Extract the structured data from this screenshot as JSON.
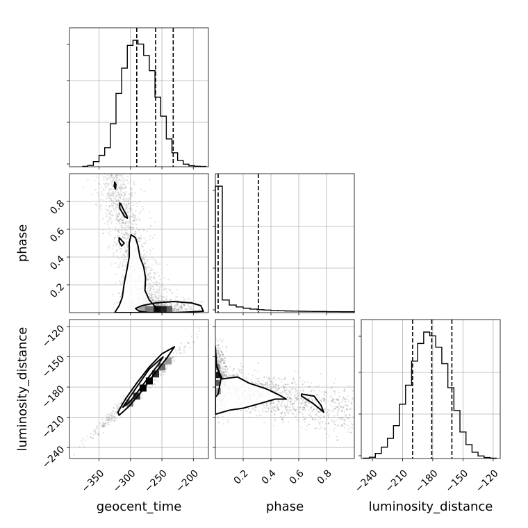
{
  "chart_data": {
    "type": "corner",
    "parameters": [
      "geocent_time",
      "phase",
      "luminosity_distance"
    ],
    "quantile_lines": [
      0.16,
      0.5,
      0.84
    ],
    "grid": true,
    "ranges": {
      "geocent_time": [
        -397,
        -176
      ],
      "phase": [
        0.0,
        1.0
      ],
      "luminosity_distance": [
        -251,
        -113
      ]
    },
    "ticks": {
      "geocent_time": [
        "−350",
        "−300",
        "−250",
        "−200"
      ],
      "geocent_time_values": [
        -350,
        -300,
        -250,
        -200
      ],
      "phase": [
        "0.2",
        "0.4",
        "0.6",
        "0.8"
      ],
      "phase_values": [
        0.2,
        0.4,
        0.6,
        0.8
      ],
      "luminosity_distance": [
        "−240",
        "−210",
        "−180",
        "−150",
        "−120"
      ],
      "luminosity_distance_values": [
        -240,
        -210,
        -180,
        -150,
        -120
      ]
    },
    "marginals": {
      "geocent_time": {
        "quantiles": [
          -290,
          -260,
          -232
        ],
        "bin_edges": [
          -376,
          -368,
          -359,
          -350,
          -341,
          -332,
          -323,
          -314,
          -305,
          -296,
          -288,
          -279,
          -270,
          -261,
          -252,
          -243,
          -234,
          -225,
          -216,
          -207,
          -198,
          -189,
          -180
        ],
        "counts": [
          0.3,
          1.0,
          4.0,
          9.0,
          15.0,
          34.0,
          58.0,
          78.0,
          96.0,
          100.0,
          97.0,
          88.0,
          76.0,
          55.0,
          40.0,
          22.0,
          11.0,
          5.0,
          2.0,
          0.8,
          0.4,
          0.2
        ]
      },
      "phase": {
        "quantiles": [
          0.02,
          0.31
        ],
        "bin_edges": [
          0.0,
          0.05,
          0.1,
          0.15,
          0.2,
          0.25,
          0.3,
          0.35,
          0.4,
          0.45,
          0.5,
          0.55,
          0.6,
          0.65,
          0.7,
          0.75,
          0.8,
          0.85,
          0.9,
          0.95,
          1.0
        ],
        "counts": [
          100.0,
          10.0,
          6.0,
          4.5,
          3.5,
          2.8,
          2.3,
          2.0,
          1.7,
          1.5,
          1.3,
          1.2,
          1.1,
          1.0,
          0.9,
          0.9,
          0.8,
          0.8,
          0.7,
          0.7
        ]
      },
      "luminosity_distance": {
        "quantiles": [
          -200,
          -181,
          -161
        ],
        "bin_edges": [
          -249,
          -243,
          -237,
          -231,
          -225,
          -219,
          -213,
          -207,
          -201,
          -195,
          -189,
          -183,
          -177,
          -171,
          -165,
          -159,
          -153,
          -147,
          -141,
          -135,
          -129,
          -123,
          -117
        ],
        "counts": [
          0.3,
          1.0,
          4.0,
          9.0,
          16.0,
          26.0,
          43.0,
          58.0,
          77.0,
          91.0,
          100.0,
          97.0,
          88.0,
          75.0,
          56.0,
          38.0,
          21.0,
          11.0,
          5.0,
          2.0,
          0.8,
          0.3
        ]
      }
    },
    "joint": {
      "phase_vs_geocent_time": {
        "contours": [
          [
            [
              -255,
              0.0
            ],
            [
              -257,
              0.02
            ],
            [
              -262,
              0.05
            ],
            [
              -270,
              0.09
            ],
            [
              -277,
              0.16
            ],
            [
              -276,
              0.25
            ],
            [
              -279,
              0.33
            ],
            [
              -285,
              0.4
            ],
            [
              -288,
              0.48
            ],
            [
              -292,
              0.54
            ],
            [
              -299,
              0.56
            ],
            [
              -302,
              0.5
            ],
            [
              -302,
              0.4
            ],
            [
              -306,
              0.3
            ],
            [
              -310,
              0.21
            ],
            [
              -313,
              0.11
            ],
            [
              -318,
              0.05
            ],
            [
              -325,
              0.0
            ]
          ],
          [
            [
              -286,
              0.01
            ],
            [
              -292,
              0.03
            ],
            [
              -282,
              0.05
            ],
            [
              -260,
              0.07
            ],
            [
              -232,
              0.08
            ],
            [
              -203,
              0.07
            ],
            [
              -188,
              0.05
            ],
            [
              -184,
              0.01
            ],
            [
              -230,
              0.0
            ],
            [
              -270,
              0.0
            ]
          ],
          [
            [
              -315,
              0.78
            ],
            [
              -311,
              0.74
            ],
            [
              -306,
              0.7
            ],
            [
              -305,
              0.68
            ],
            [
              -309,
              0.69
            ],
            [
              -313,
              0.72
            ],
            [
              -317,
              0.75
            ],
            [
              -317,
              0.79
            ]
          ],
          [
            [
              -318,
              0.54
            ],
            [
              -314,
              0.52
            ],
            [
              -310,
              0.5
            ],
            [
              -314,
              0.48
            ],
            [
              -318,
              0.51
            ]
          ],
          [
            [
              -325,
              0.94
            ],
            [
              -323,
              0.92
            ],
            [
              -324,
              0.89
            ],
            [
              -326,
              0.91
            ]
          ]
        ],
        "density_cells": [
          {
            "x": -270,
            "y": 0.025,
            "w": 15,
            "v": 0.5
          },
          {
            "x": -257,
            "y": 0.025,
            "w": 12,
            "v": 0.95
          },
          {
            "x": -247,
            "y": 0.025,
            "w": 10,
            "v": 0.85
          },
          {
            "x": -238,
            "y": 0.025,
            "w": 9,
            "v": 0.6
          },
          {
            "x": -282,
            "y": 0.025,
            "w": 10,
            "v": 0.3
          }
        ],
        "scatter": {
          "n": 1900,
          "cloud": [
            [
              -330,
              1.0
            ],
            [
              -315,
              0.75
            ],
            [
              -300,
              0.5
            ],
            [
              -285,
              0.25
            ],
            [
              -265,
              0.05
            ]
          ]
        }
      },
      "luminosity_distance_vs_geocent_time": {
        "contours": [
          [
            [
              -320,
              -205
            ],
            [
              -308,
              -192
            ],
            [
              -290,
              -176
            ],
            [
              -270,
              -160
            ],
            [
              -250,
              -147
            ],
            [
              -230,
              -140
            ],
            [
              -242,
              -151
            ],
            [
              -262,
              -167
            ],
            [
              -282,
              -184
            ],
            [
              -302,
              -199
            ],
            [
              -318,
              -208
            ]
          ],
          [
            [
              -312,
              -200
            ],
            [
              -290,
              -180
            ],
            [
              -270,
              -162
            ],
            [
              -248,
              -150
            ],
            [
              -255,
              -157
            ],
            [
              -278,
              -176
            ],
            [
              -300,
              -194
            ]
          ]
        ],
        "density_cells": [
          {
            "x": -301,
            "y": -196,
            "v": 0.5
          },
          {
            "x": -290,
            "y": -189,
            "v": 0.75
          },
          {
            "x": -280,
            "y": -181,
            "v": 1.0
          },
          {
            "x": -270,
            "y": -174,
            "v": 1.0
          },
          {
            "x": -260,
            "y": -167,
            "v": 0.8
          },
          {
            "x": -250,
            "y": -160,
            "v": 0.55
          },
          {
            "x": -240,
            "y": -154,
            "v": 0.35
          }
        ],
        "scatter": {
          "n": 400,
          "line": [
            [
              -390,
              -245
            ],
            [
              -190,
              -126
            ]
          ]
        }
      },
      "luminosity_distance_vs_phase": {
        "contours": [
          [
            [
              0.0,
              -140
            ],
            [
              0.01,
              -160
            ],
            [
              0.05,
              -172
            ],
            [
              0.1,
              -171
            ],
            [
              0.16,
              -170
            ],
            [
              0.24,
              -176
            ],
            [
              0.37,
              -182
            ],
            [
              0.46,
              -188
            ],
            [
              0.51,
              -192
            ],
            [
              0.43,
              -192
            ],
            [
              0.33,
              -196
            ],
            [
              0.2,
              -201
            ],
            [
              0.1,
              -203
            ],
            [
              0.0,
              -207
            ]
          ],
          [
            [
              0.0,
              -155
            ],
            [
              0.04,
              -172
            ],
            [
              0.02,
              -187
            ],
            [
              0.0,
              -190
            ]
          ],
          [
            [
              0.62,
              -187
            ],
            [
              0.71,
              -189
            ],
            [
              0.76,
              -198
            ],
            [
              0.78,
              -205
            ],
            [
              0.7,
              -196
            ],
            [
              0.62,
              -189
            ]
          ]
        ],
        "density_cells": [
          {
            "x": 0.01,
            "y": -168,
            "v": 0.9
          },
          {
            "x": 0.01,
            "y": -176,
            "v": 0.6
          },
          {
            "x": 0.01,
            "y": -160,
            "v": 0.5
          },
          {
            "x": 0.02,
            "y": -184,
            "v": 0.3
          }
        ],
        "scatter": {
          "n": 1900,
          "cloud": [
            [
              0.0,
              -175
            ],
            [
              0.3,
              -185
            ],
            [
              0.6,
              -195
            ],
            [
              1.0,
              -205
            ]
          ]
        }
      }
    }
  },
  "labels": {
    "x0": "geocent_time",
    "x1": "phase",
    "x2": "luminosity_distance",
    "y1": "phase",
    "y2": "luminosity_distance"
  }
}
